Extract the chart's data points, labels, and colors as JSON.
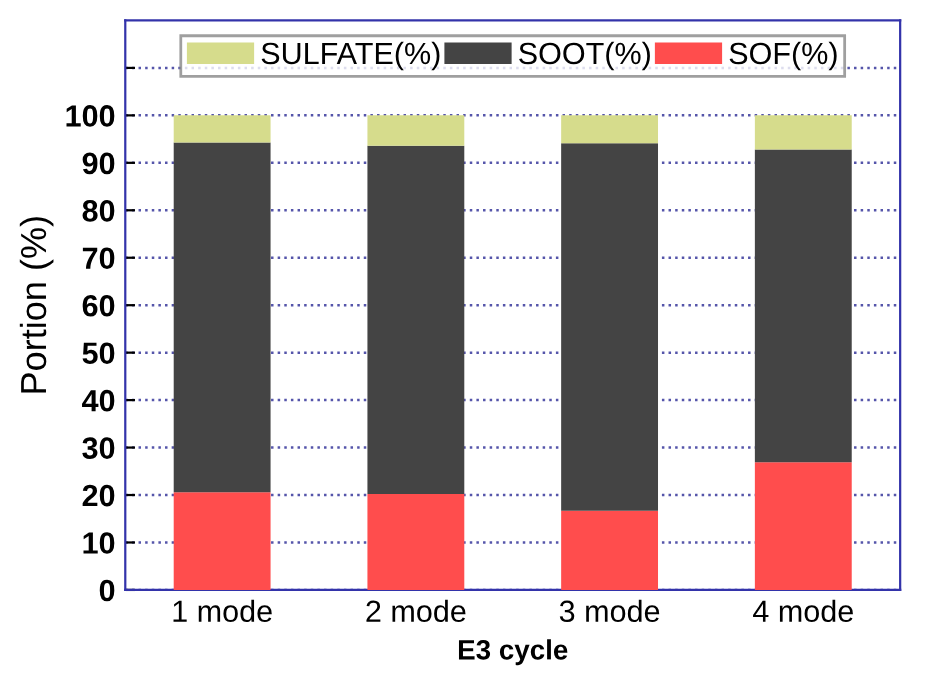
{
  "chart_data": {
    "type": "bar",
    "stacked": true,
    "xlabel": "E3 cycle",
    "ylabel": "Portion (%)",
    "categories": [
      "1 mode",
      "2 mode",
      "3 mode",
      "4 mode"
    ],
    "series": [
      {
        "name": "SOF(%)",
        "color": "#ff4d4d",
        "values": [
          20.6,
          20.2,
          16.7,
          26.9
        ]
      },
      {
        "name": "SOOT(%)",
        "color": "#444444",
        "values": [
          73.7,
          73.4,
          77.4,
          65.9
        ]
      },
      {
        "name": "SULFATE(%)",
        "color": "#d6dc8c",
        "values": [
          5.7,
          6.4,
          5.9,
          7.2
        ]
      }
    ],
    "ylim": [
      0,
      120
    ],
    "yticks": [
      0,
      10,
      20,
      30,
      40,
      50,
      60,
      70,
      80,
      90,
      100,
      {
        "value": 110,
        "label": null
      }
    ],
    "grid": "y",
    "legend": "top"
  }
}
